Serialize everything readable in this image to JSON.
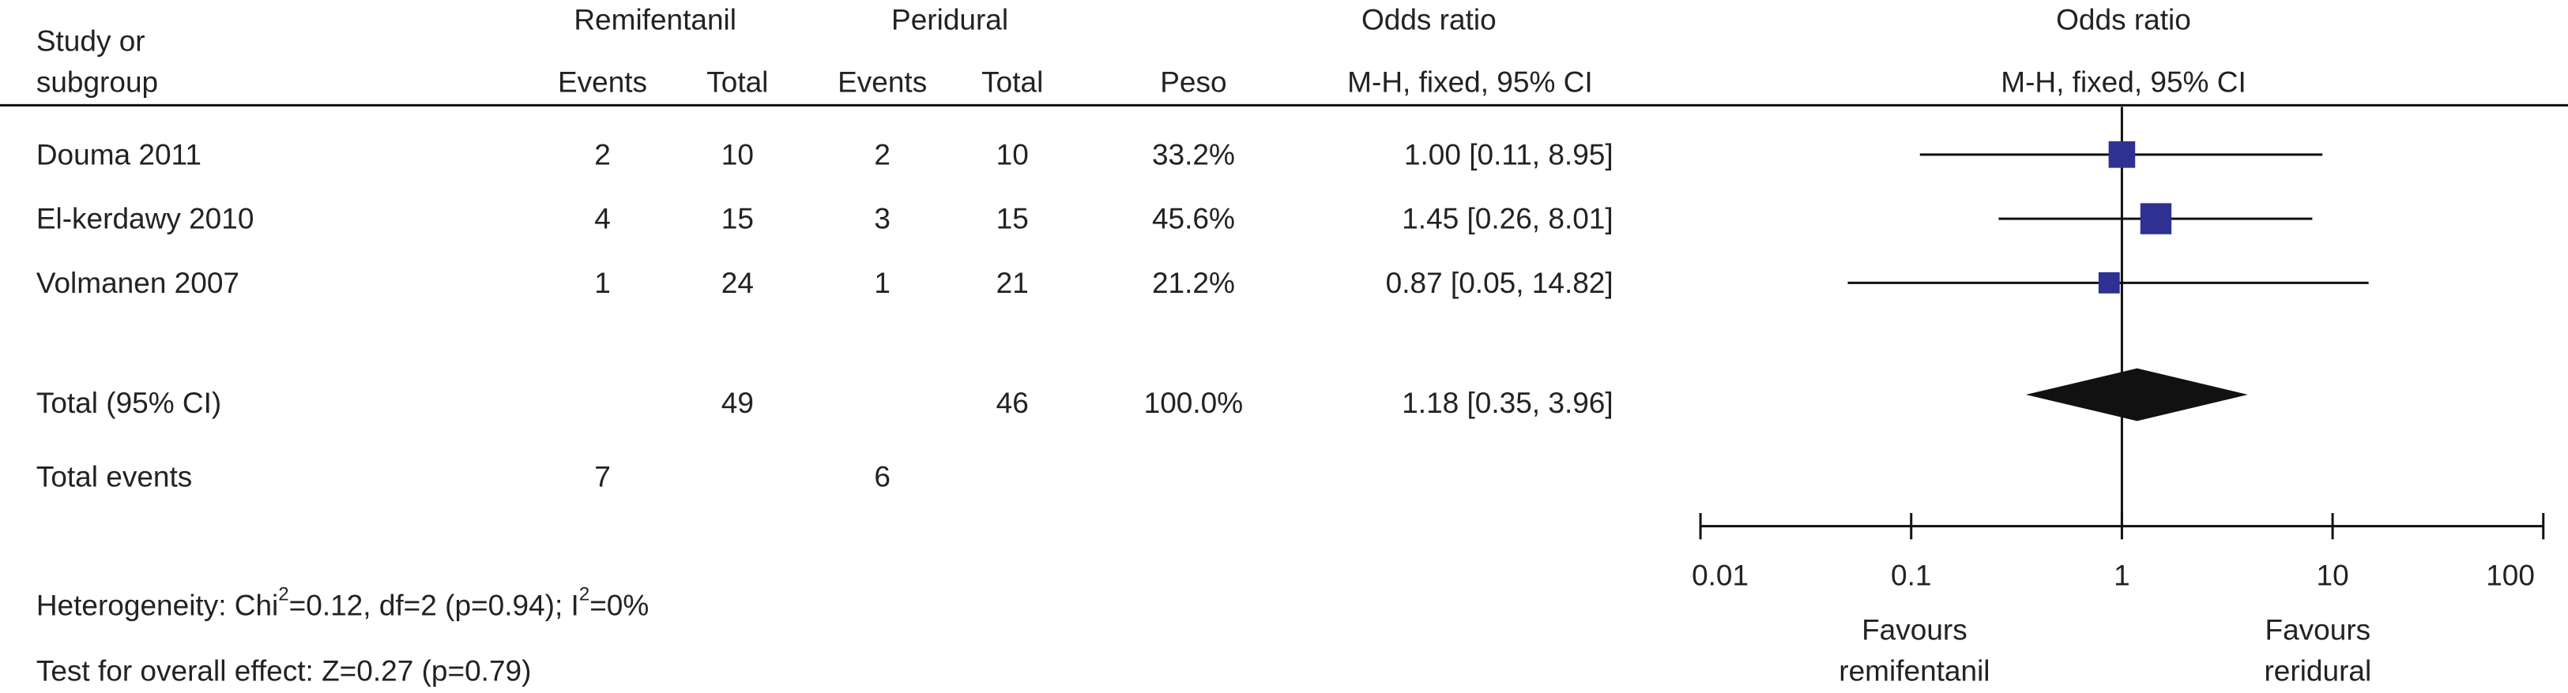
{
  "chart_data": {
    "type": "forest",
    "headers": {
      "study": [
        "Study or",
        "subgroup"
      ],
      "group1": "Remifentanil",
      "group2": "Peridural",
      "or_table": "Odds ratio",
      "or_plot": "Odds ratio",
      "events1": "Events",
      "total1": "Total",
      "events2": "Events",
      "total2": "Total",
      "weight": "Peso",
      "method_table": "M-H, fixed, 95% CI",
      "method_plot": "M-H, fixed, 95% CI"
    },
    "studies": [
      {
        "name": "Douma 2011",
        "events1": 2,
        "total1": 10,
        "events2": 2,
        "total2": 10,
        "weight": 33.2,
        "weight_label": "33.2%",
        "or": 1.0,
        "lower": 0.11,
        "upper": 8.95,
        "ci_label": "1.00 [0.11, 8.95]"
      },
      {
        "name": "El-kerdawy 2010",
        "events1": 4,
        "total1": 15,
        "events2": 3,
        "total2": 15,
        "weight": 45.6,
        "weight_label": "45.6%",
        "or": 1.45,
        "lower": 0.26,
        "upper": 8.01,
        "ci_label": "1.45 [0.26, 8.01]"
      },
      {
        "name": "Volmanen 2007",
        "events1": 1,
        "total1": 24,
        "events2": 1,
        "total2": 21,
        "weight": 21.2,
        "weight_label": "21.2%",
        "or": 0.87,
        "lower": 0.05,
        "upper": 14.82,
        "ci_label": "0.87 [0.05, 14.82]"
      }
    ],
    "total": {
      "name": "Total (95% CI)",
      "total1": 49,
      "total2": 46,
      "weight_label": "100.0%",
      "or": 1.18,
      "lower": 0.35,
      "upper": 3.96,
      "ci_label": "1.18 [0.35, 3.96]"
    },
    "total_events": {
      "name": "Total events",
      "events1": 7,
      "events2": 6
    },
    "heterogeneity": [
      "Heterogeneity: Chi",
      "2",
      "=0.12, df=2 (p=0.94); I",
      "2",
      "=0%"
    ],
    "overall_effect": "Test for overall effect: Z=0.27 (p=0.79)",
    "xscale": "log",
    "xlim": [
      0.01,
      100
    ],
    "xticks": [
      0.01,
      0.1,
      1,
      10,
      100
    ],
    "favours_left": [
      "Favours",
      "remifentanil"
    ],
    "favours_right": [
      "Favours",
      "reridural"
    ],
    "color": "#2e3192"
  }
}
